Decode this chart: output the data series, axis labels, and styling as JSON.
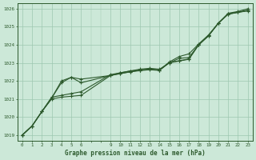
{
  "title": "Graphe pression niveau de la mer (hPa)",
  "bg_color": "#cce8d8",
  "grid_color": "#9dc8b0",
  "line_color": "#2d5a2d",
  "xlim": [
    -0.5,
    23.5
  ],
  "ylim": [
    1018.7,
    1026.3
  ],
  "xticks": [
    0,
    1,
    2,
    3,
    4,
    5,
    6,
    9,
    10,
    11,
    12,
    13,
    14,
    15,
    16,
    17,
    18,
    19,
    20,
    21,
    22,
    23
  ],
  "yticks": [
    1019,
    1020,
    1021,
    1022,
    1023,
    1024,
    1025,
    1026
  ],
  "series": [
    {
      "x": [
        0,
        1,
        2,
        3,
        4,
        5,
        6,
        9,
        10,
        11,
        12,
        13,
        14,
        15,
        16,
        17,
        18,
        19,
        20,
        21,
        22,
        23
      ],
      "y": [
        1019.0,
        1019.5,
        1020.3,
        1021.05,
        1021.9,
        1022.2,
        1022.1,
        1022.3,
        1022.45,
        1022.55,
        1022.65,
        1022.7,
        1022.65,
        1023.0,
        1023.25,
        1023.3,
        1024.0,
        1024.5,
        1025.2,
        1025.75,
        1025.85,
        1026.0
      ]
    },
    {
      "x": [
        0,
        1,
        2,
        3,
        4,
        5,
        6,
        9,
        10,
        11,
        12,
        13,
        14,
        15,
        16,
        17,
        18,
        19,
        20,
        21,
        22,
        23
      ],
      "y": [
        1019.0,
        1019.5,
        1020.3,
        1021.05,
        1022.0,
        1022.2,
        1021.9,
        1022.3,
        1022.4,
        1022.5,
        1022.6,
        1022.65,
        1022.6,
        1023.0,
        1023.1,
        1023.2,
        1024.0,
        1024.5,
        1025.2,
        1025.7,
        1025.8,
        1025.9
      ]
    },
    {
      "x": [
        0,
        1,
        2,
        3,
        4,
        5,
        6,
        9,
        10,
        11,
        12,
        13,
        14,
        15,
        16,
        17,
        18,
        19,
        20,
        21,
        22,
        23
      ],
      "y": [
        1019.0,
        1019.5,
        1020.3,
        1021.1,
        1021.2,
        1021.3,
        1021.4,
        1022.35,
        1022.45,
        1022.55,
        1022.6,
        1022.65,
        1022.6,
        1023.05,
        1023.35,
        1023.5,
        1024.05,
        1024.55,
        1025.2,
        1025.72,
        1025.82,
        1025.92
      ]
    },
    {
      "x": [
        0,
        1,
        2,
        3,
        4,
        5,
        6,
        9,
        10,
        11,
        12,
        13,
        14,
        15,
        16,
        17,
        18,
        19,
        20,
        21,
        22,
        23
      ],
      "y": [
        1019.0,
        1019.5,
        1020.3,
        1021.0,
        1021.1,
        1021.15,
        1021.2,
        1022.3,
        1022.42,
        1022.5,
        1022.57,
        1022.62,
        1022.58,
        1023.02,
        1023.12,
        1023.22,
        1024.02,
        1024.52,
        1025.2,
        1025.7,
        1025.8,
        1025.88
      ]
    }
  ]
}
